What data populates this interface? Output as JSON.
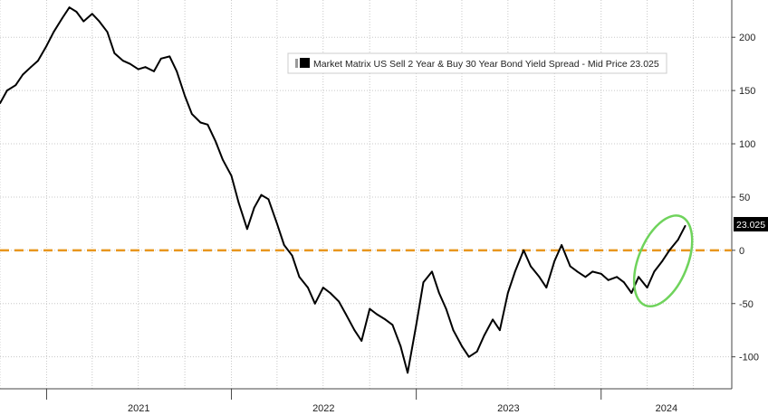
{
  "chart_data": {
    "type": "line",
    "title": "",
    "xlabel": "",
    "ylabel": "",
    "x_tick_labels": [
      "2021",
      "2022",
      "2023",
      "2024"
    ],
    "y_ticks": [
      200,
      150,
      100,
      50,
      0,
      -50,
      -100
    ],
    "ylim": [
      -130,
      235
    ],
    "xlim": [
      "2020-10-01",
      "2024-09-15"
    ],
    "grid": true,
    "legend": {
      "placement": "top-right",
      "text": "Market Matrix US Sell 2 Year & Buy 30 Year Bond Yield Spread - Mid Price 23.025",
      "icon": "legend-square-icon"
    },
    "last_price_label": "23.025",
    "reference_line": {
      "y": 0,
      "style": "dashed",
      "color": "#E8961E"
    },
    "highlight": {
      "shape": "ellipse",
      "color": "#6FD35C",
      "x_range": [
        "2024-03-15",
        "2024-06-20"
      ],
      "y_range": [
        -55,
        35
      ]
    },
    "series": [
      {
        "color": "#000000",
        "x": [
          "2020-10-01",
          "2020-10-15",
          "2020-11-01",
          "2020-11-15",
          "2020-12-01",
          "2020-12-15",
          "2021-01-01",
          "2021-01-15",
          "2021-02-01",
          "2021-02-15",
          "2021-03-01",
          "2021-03-15",
          "2021-04-01",
          "2021-04-15",
          "2021-05-01",
          "2021-05-15",
          "2021-06-01",
          "2021-06-15",
          "2021-07-01",
          "2021-07-15",
          "2021-08-01",
          "2021-08-15",
          "2021-09-01",
          "2021-09-15",
          "2021-10-01",
          "2021-10-15",
          "2021-11-01",
          "2021-11-15",
          "2021-12-01",
          "2021-12-15",
          "2022-01-01",
          "2022-01-15",
          "2022-02-01",
          "2022-02-15",
          "2022-03-01",
          "2022-03-15",
          "2022-04-01",
          "2022-04-15",
          "2022-05-01",
          "2022-05-15",
          "2022-06-01",
          "2022-06-15",
          "2022-07-01",
          "2022-07-15",
          "2022-08-01",
          "2022-08-15",
          "2022-09-01",
          "2022-09-15",
          "2022-10-01",
          "2022-10-15",
          "2022-11-01",
          "2022-11-15",
          "2022-12-01",
          "2022-12-15",
          "2023-01-01",
          "2023-01-15",
          "2023-02-01",
          "2023-02-15",
          "2023-03-01",
          "2023-03-15",
          "2023-04-01",
          "2023-04-15",
          "2023-05-01",
          "2023-05-15",
          "2023-06-01",
          "2023-06-15",
          "2023-07-01",
          "2023-07-15",
          "2023-08-01",
          "2023-08-15",
          "2023-09-01",
          "2023-09-15",
          "2023-10-01",
          "2023-10-15",
          "2023-11-01",
          "2023-11-15",
          "2023-12-01",
          "2023-12-15",
          "2024-01-01",
          "2024-01-15",
          "2024-02-01",
          "2024-02-15",
          "2024-03-01",
          "2024-03-15",
          "2024-04-01",
          "2024-04-15",
          "2024-05-01",
          "2024-05-15",
          "2024-06-01",
          "2024-06-15"
        ],
        "values": [
          138,
          150,
          155,
          165,
          172,
          178,
          192,
          205,
          218,
          228,
          224,
          215,
          222,
          215,
          205,
          185,
          178,
          175,
          170,
          172,
          168,
          180,
          182,
          168,
          145,
          128,
          120,
          118,
          102,
          85,
          70,
          45,
          20,
          40,
          52,
          48,
          25,
          5,
          -5,
          -25,
          -35,
          -50,
          -35,
          -40,
          -48,
          -60,
          -75,
          -85,
          -55,
          -60,
          -65,
          -70,
          -90,
          -115,
          -70,
          -30,
          -20,
          -40,
          -55,
          -75,
          -90,
          -100,
          -95,
          -80,
          -65,
          -75,
          -40,
          -20,
          0,
          -15,
          -25,
          -35,
          -10,
          5,
          -15,
          -20,
          -25,
          -20,
          -22,
          -28,
          -25,
          -30,
          -40,
          -25,
          -35,
          -20,
          -10,
          0,
          10,
          23
        ]
      }
    ]
  }
}
